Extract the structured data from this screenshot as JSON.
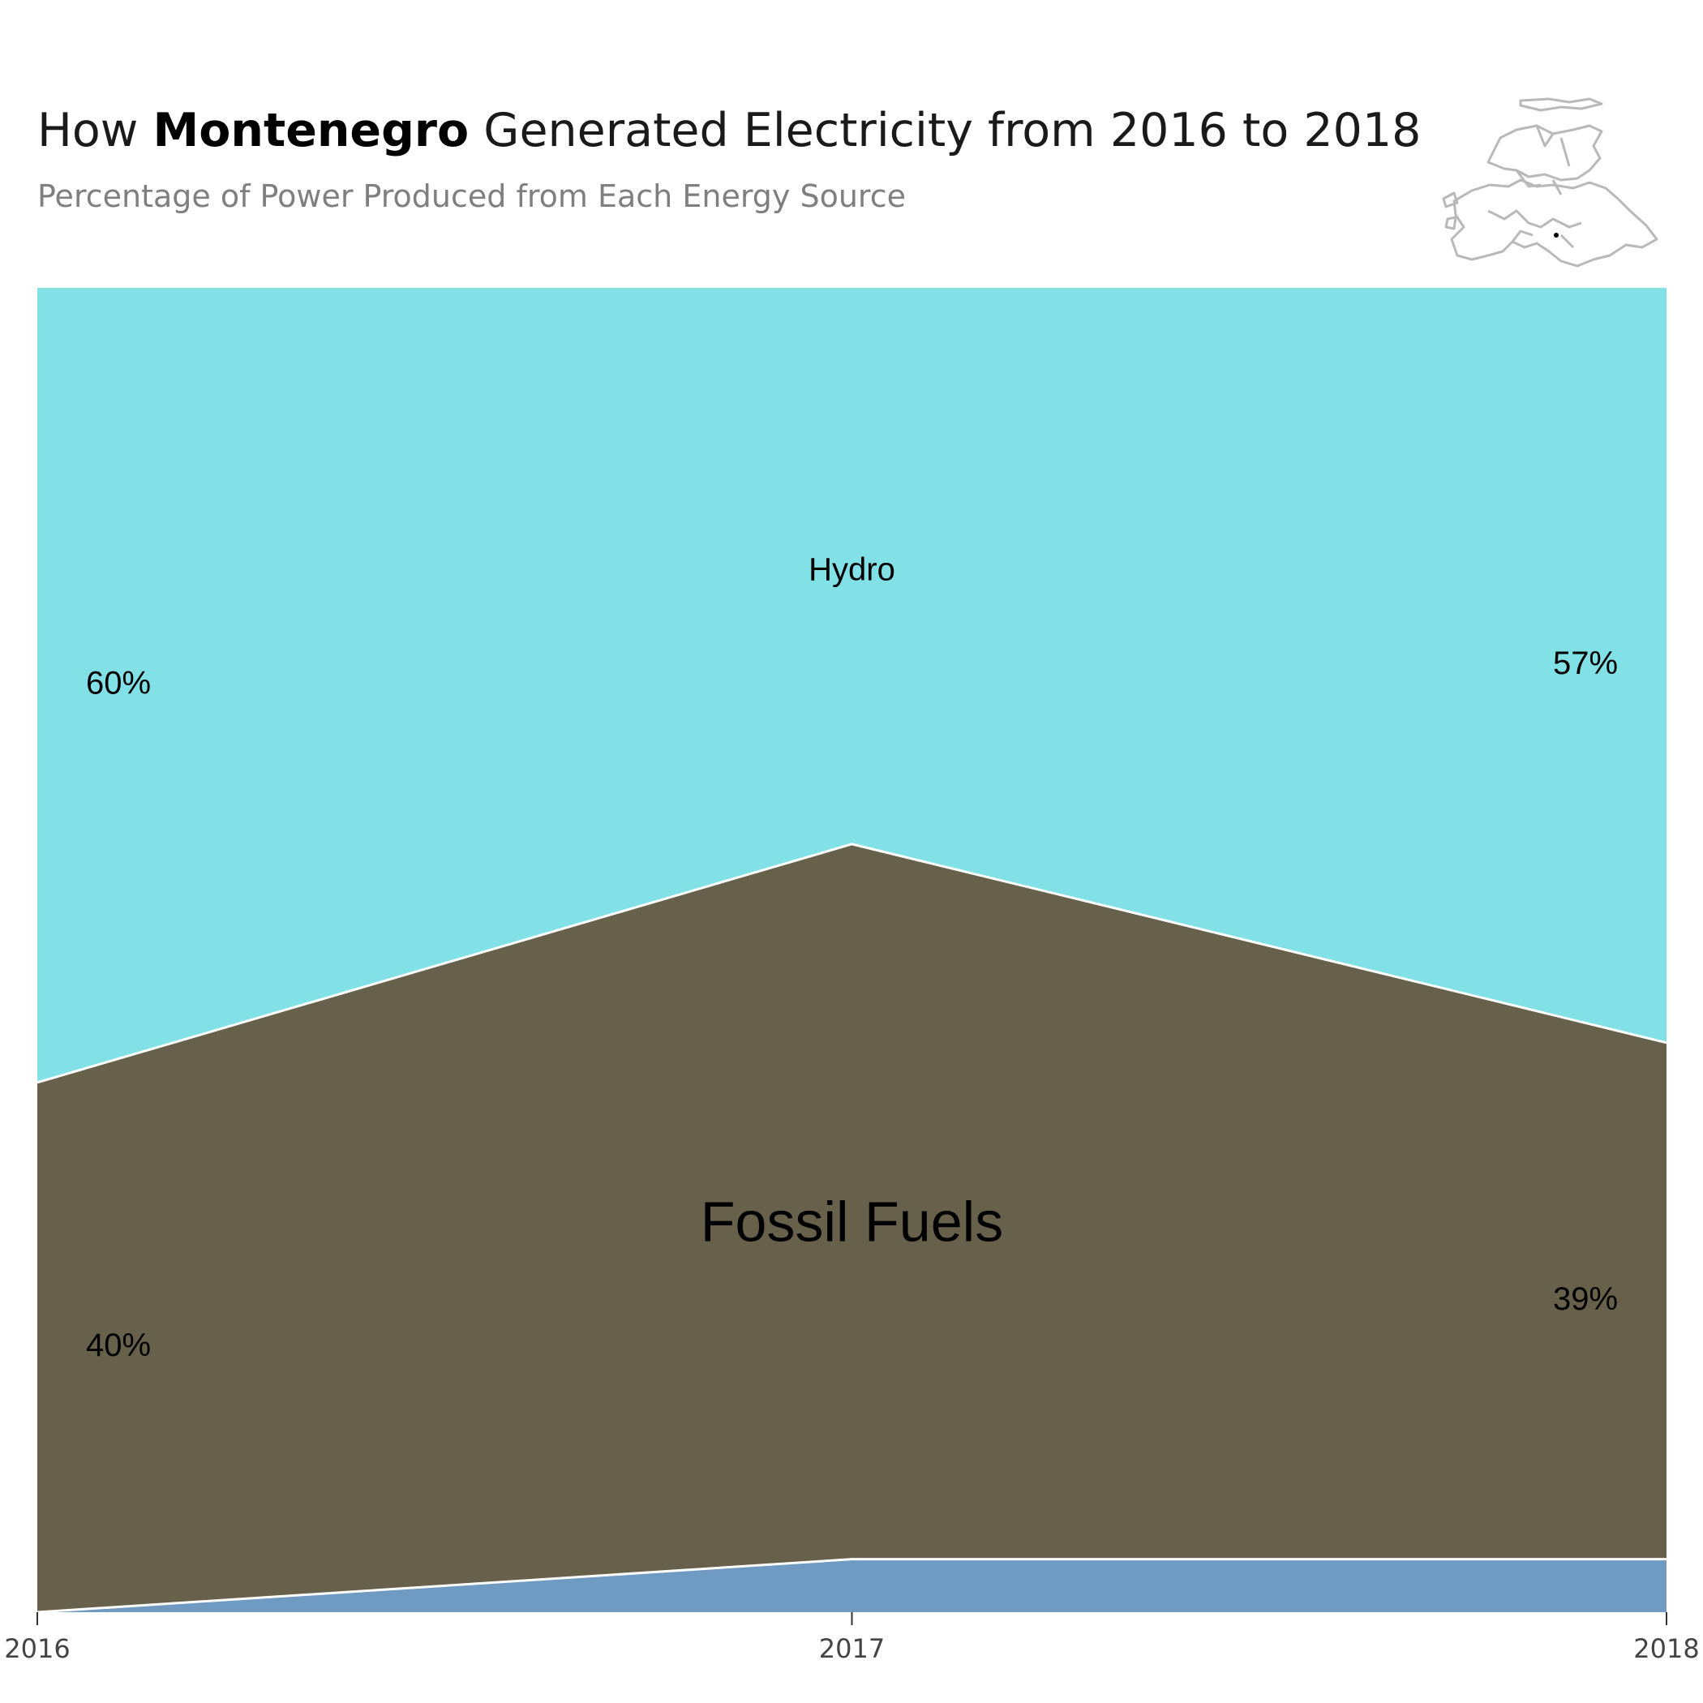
{
  "title": {
    "prefix": "How ",
    "country": "Montenegro",
    "suffix": " Generated Electricity from 2016 to 2018"
  },
  "subtitle": "Percentage of Power Produced from Each Energy Source",
  "chart_data": {
    "type": "area",
    "stacked": true,
    "x": [
      "2016",
      "2017",
      "2018"
    ],
    "ylim": [
      0,
      100
    ],
    "series": [
      {
        "name": "",
        "values": [
          0,
          4,
          4
        ],
        "color": "#6f9ac2"
      },
      {
        "name": "Fossil Fuels",
        "values": [
          40,
          54,
          39
        ],
        "color": "#67604a"
      },
      {
        "name": "Hydro",
        "values": [
          60,
          42,
          57
        ],
        "color": "#81e1e7"
      }
    ],
    "annotations": [
      {
        "text": "60%",
        "series": "Hydro",
        "x": "2016"
      },
      {
        "text": "57%",
        "series": "Hydro",
        "x": "2018"
      },
      {
        "text": "40%",
        "series": "Fossil Fuels",
        "x": "2016"
      },
      {
        "text": "39%",
        "series": "Fossil Fuels",
        "x": "2018"
      }
    ],
    "series_labels": [
      "Hydro",
      "Fossil Fuels"
    ],
    "grid": false,
    "legend": "none"
  }
}
